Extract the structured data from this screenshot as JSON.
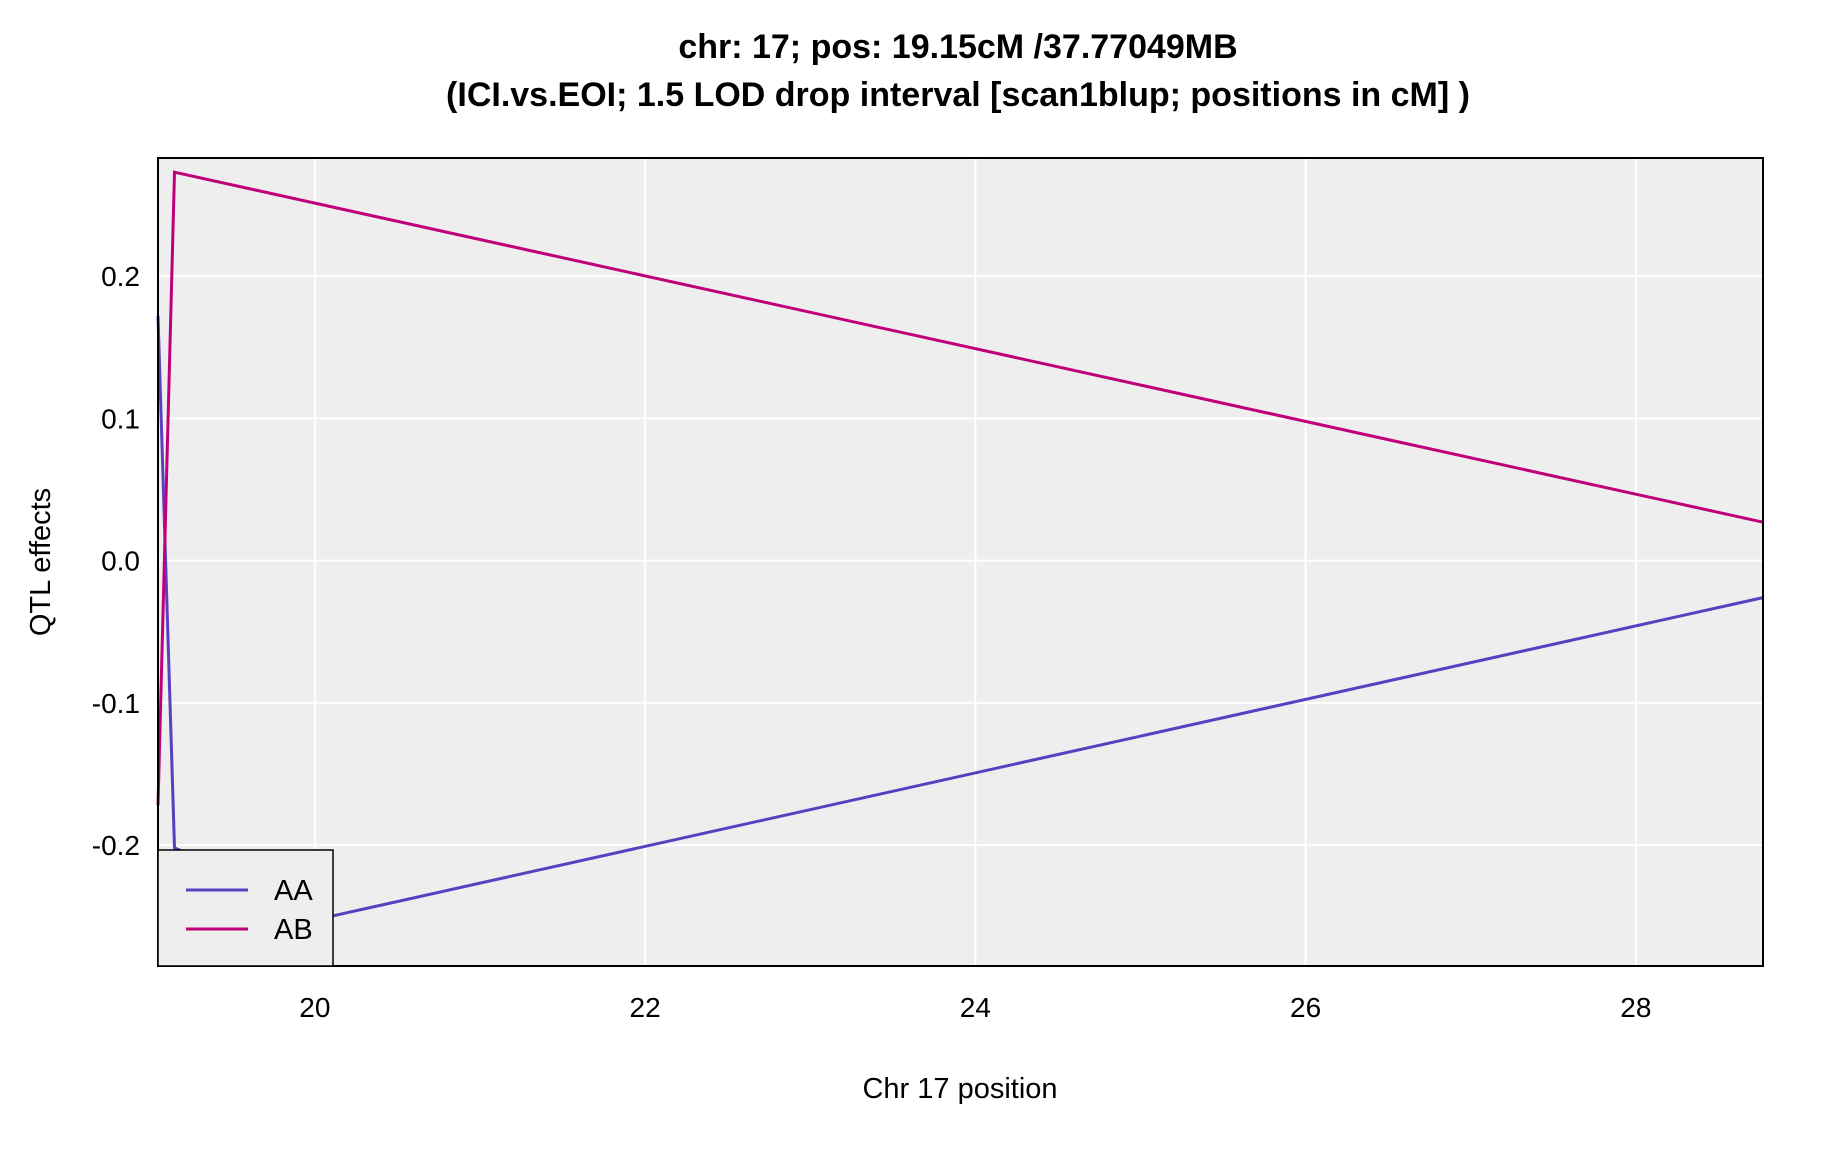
{
  "chart_data": {
    "type": "line",
    "title": "chr: 17; pos: 19.15cM /37.77049MB",
    "subtitle": "(ICI.vs.EOI; 1.5 LOD drop interval [scan1blup; positions in cM] )",
    "xlabel": "Chr 17 position",
    "ylabel": "QTL effects",
    "xlim": [
      19.05,
      28.77
    ],
    "ylim": [
      -0.285,
      0.283
    ],
    "xticks": [
      20,
      22,
      24,
      26,
      28
    ],
    "xtick_labels": [
      "20",
      "22",
      "24",
      "26",
      "28"
    ],
    "yticks": [
      -0.2,
      -0.1,
      0.0,
      0.1,
      0.2
    ],
    "ytick_labels": [
      "-0.2",
      "-0.1",
      "0.0",
      "0.1",
      "0.2"
    ],
    "grid": true,
    "legend_position": "bottom-left",
    "background": "#eeeeee",
    "series": [
      {
        "name": "AA",
        "color": "#5a3fc0",
        "x": [
          19.05,
          19.15,
          20.1,
          28.77
        ],
        "y": [
          0.172,
          -0.202,
          -0.25,
          -0.026
        ]
      },
      {
        "name": "AB",
        "color": "#c0007a",
        "x": [
          19.05,
          19.15,
          28.77
        ],
        "y": [
          -0.172,
          0.273,
          0.027
        ]
      }
    ]
  }
}
